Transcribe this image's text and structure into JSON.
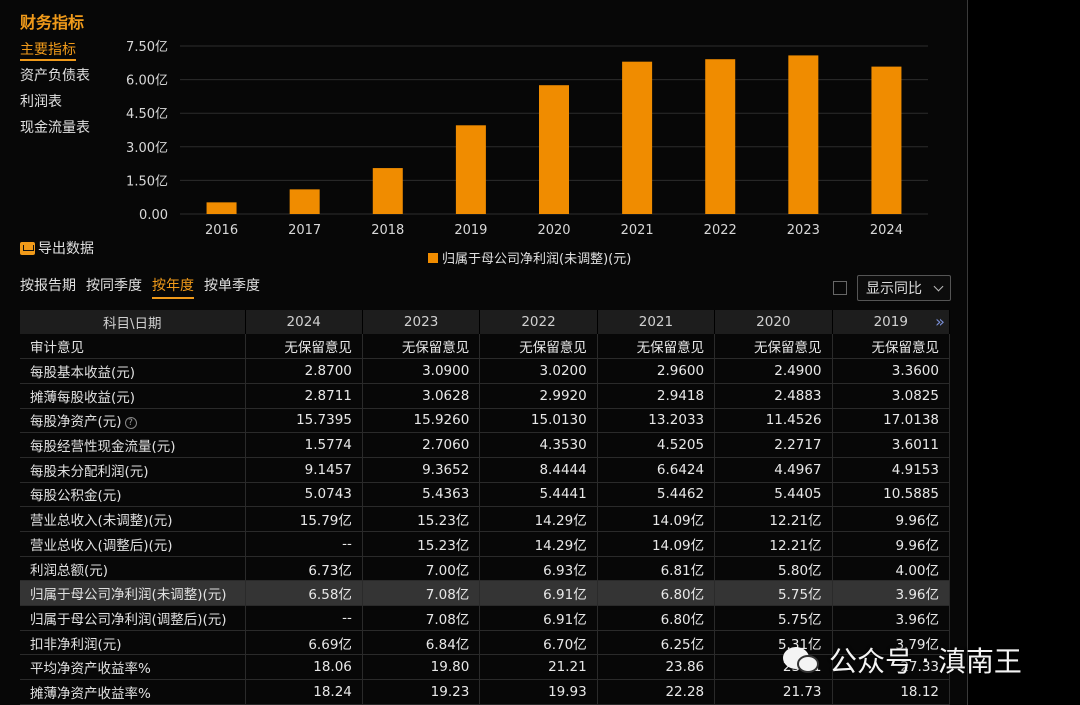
{
  "panel": {
    "title": "财务指标"
  },
  "sidenav": [
    {
      "label": "主要指标",
      "active": true
    },
    {
      "label": "资产负债表",
      "active": false
    },
    {
      "label": "利润表",
      "active": false
    },
    {
      "label": "现金流量表",
      "active": false
    }
  ],
  "export_label": "导出数据",
  "chart_data": {
    "type": "bar",
    "categories": [
      "2016",
      "2017",
      "2018",
      "2019",
      "2020",
      "2021",
      "2022",
      "2023",
      "2024"
    ],
    "series": [
      {
        "name": "归属于母公司净利润(未调整)(元)",
        "values": [
          0.52,
          1.1,
          2.05,
          3.96,
          5.75,
          6.8,
          6.91,
          7.08,
          6.58
        ],
        "color": "#f08c00"
      }
    ],
    "ylim": [
      0,
      7.5
    ],
    "yticks": [
      "0.00",
      "1.50亿",
      "3.00亿",
      "4.50亿",
      "6.00亿",
      "7.50亿"
    ],
    "ytick_values": [
      0,
      1.5,
      3.0,
      4.5,
      6.0,
      7.5
    ],
    "grid": true,
    "legend": "bottom"
  },
  "tabs": [
    {
      "label": "按报告期",
      "active": false
    },
    {
      "label": "按同季度",
      "active": false
    },
    {
      "label": "按年度",
      "active": true
    },
    {
      "label": "按单季度",
      "active": false
    }
  ],
  "yoy_label": "显示同比",
  "table": {
    "header_first": "科目\\日期",
    "years": [
      "2024",
      "2023",
      "2022",
      "2021",
      "2020",
      "2019"
    ],
    "rows": [
      {
        "label": "审计意见",
        "values": [
          "无保留意见",
          "无保留意见",
          "无保留意见",
          "无保留意见",
          "无保留意见",
          "无保留意见"
        ]
      },
      {
        "label": "每股基本收益(元)",
        "values": [
          "2.8700",
          "3.0900",
          "3.0200",
          "2.9600",
          "2.4900",
          "3.3600"
        ]
      },
      {
        "label": "摊薄每股收益(元)",
        "values": [
          "2.8711",
          "3.0628",
          "2.9920",
          "2.9418",
          "2.4883",
          "3.0825"
        ]
      },
      {
        "label": "每股净资产(元)",
        "values": [
          "15.7395",
          "15.9260",
          "15.0130",
          "13.2033",
          "11.4526",
          "17.0138"
        ],
        "help": true
      },
      {
        "label": "每股经营性现金流量(元)",
        "values": [
          "1.5774",
          "2.7060",
          "4.3530",
          "4.5205",
          "2.2717",
          "3.6011"
        ]
      },
      {
        "label": "每股未分配利润(元)",
        "values": [
          "9.1457",
          "9.3652",
          "8.4444",
          "6.6424",
          "4.4967",
          "4.9153"
        ]
      },
      {
        "label": "每股公积金(元)",
        "values": [
          "5.0743",
          "5.4363",
          "5.4441",
          "5.4462",
          "5.4405",
          "10.5885"
        ]
      },
      {
        "label": "营业总收入(未调整)(元)",
        "values": [
          "15.79亿",
          "15.23亿",
          "14.29亿",
          "14.09亿",
          "12.21亿",
          "9.96亿"
        ]
      },
      {
        "label": "营业总收入(调整后)(元)",
        "values": [
          "--",
          "15.23亿",
          "14.29亿",
          "14.09亿",
          "12.21亿",
          "9.96亿"
        ]
      },
      {
        "label": "利润总额(元)",
        "values": [
          "6.73亿",
          "7.00亿",
          "6.93亿",
          "6.81亿",
          "5.80亿",
          "4.00亿"
        ]
      },
      {
        "label": "归属于母公司净利润(未调整)(元)",
        "values": [
          "6.58亿",
          "7.08亿",
          "6.91亿",
          "6.80亿",
          "5.75亿",
          "3.96亿"
        ],
        "highlight": true
      },
      {
        "label": "归属于母公司净利润(调整后)(元)",
        "values": [
          "--",
          "7.08亿",
          "6.91亿",
          "6.80亿",
          "5.75亿",
          "3.96亿"
        ]
      },
      {
        "label": "扣非净利润(元)",
        "values": [
          "6.69亿",
          "6.84亿",
          "6.70亿",
          "6.25亿",
          "5.31亿",
          "3.79亿"
        ]
      },
      {
        "label": "平均净资产收益率%",
        "values": [
          "18.06",
          "19.80",
          "21.21",
          "23.86",
          "23.81",
          "27.33"
        ]
      },
      {
        "label": "摊薄净资产收益率%",
        "values": [
          "18.24",
          "19.23",
          "19.93",
          "22.28",
          "21.73",
          "18.12"
        ]
      }
    ]
  },
  "watermark": {
    "prefix": "公众号",
    "sep": "·",
    "name": "滇南王"
  }
}
